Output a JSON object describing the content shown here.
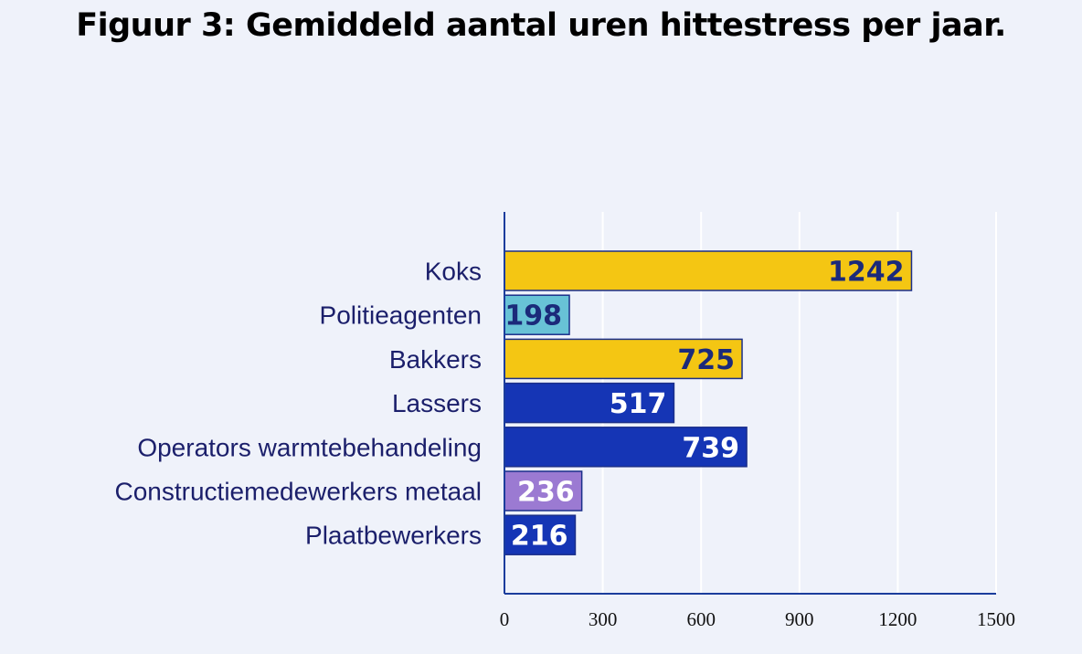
{
  "chart_data": {
    "type": "bar",
    "orientation": "horizontal",
    "title": "Figuur 3: Gemiddeld aantal uren hittestress per jaar.",
    "categories": [
      "Koks",
      "Politieagenten",
      "Bakkers",
      "Lassers",
      "Operators warmtebehandeling",
      "Constructiemedewerkers metaal",
      "Plaatbewerkers"
    ],
    "values": [
      1242,
      198,
      725,
      517,
      739,
      236,
      216
    ],
    "bar_colors": [
      "#f4c613",
      "#68c2d6",
      "#f4c613",
      "#1535b5",
      "#1535b5",
      "#9b7ad2",
      "#1535b5"
    ],
    "value_label_colors": [
      "#1b2a7a",
      "#1b2a7a",
      "#1b2a7a",
      "#ffffff",
      "#ffffff",
      "#ffffff",
      "#ffffff"
    ],
    "xlim": [
      0,
      1500
    ],
    "xticks": [
      "0",
      "300",
      "600",
      "900",
      "1200",
      "1500"
    ],
    "xtick_values": [
      0,
      300,
      600,
      900,
      1200,
      1500
    ],
    "grid": true,
    "legend": "none",
    "xlabel": "",
    "ylabel": ""
  },
  "colors": {
    "background": "#eff2fa",
    "axis": "#1b3d9c",
    "grid": "#ffffff"
  }
}
